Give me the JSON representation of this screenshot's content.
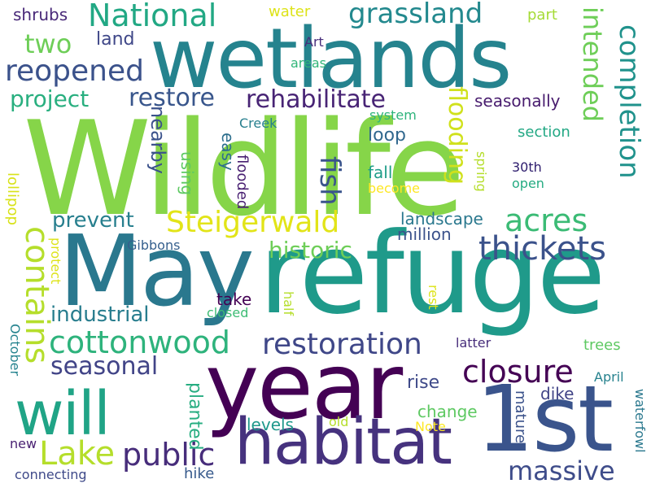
{
  "word_cloud": {
    "words": [
      {
        "text": "Wildlife",
        "color": "#86d549"
      },
      {
        "text": "refuge",
        "color": "#1f9a8a"
      },
      {
        "text": "wetlands",
        "color": "#25838e"
      },
      {
        "text": "May",
        "color": "#2a788e"
      },
      {
        "text": "year",
        "color": "#440154"
      },
      {
        "text": "1st",
        "color": "#3a548c"
      },
      {
        "text": "habitat",
        "color": "#46327e"
      },
      {
        "text": "will",
        "color": "#20a486"
      },
      {
        "text": "National",
        "color": "#22a884"
      },
      {
        "text": "grassland",
        "color": "#23898e"
      },
      {
        "text": "two",
        "color": "#6ece58"
      },
      {
        "text": "land",
        "color": "#3f4788"
      },
      {
        "text": "reopened",
        "color": "#3b528b"
      },
      {
        "text": "project",
        "color": "#29af7f"
      },
      {
        "text": "restore",
        "color": "#39568c"
      },
      {
        "text": "rehabilitate",
        "color": "#482475"
      },
      {
        "text": "seasonally",
        "color": "#481c6e"
      },
      {
        "text": "intended",
        "color": "#6ece58"
      },
      {
        "text": "completion",
        "color": "#20928c"
      },
      {
        "text": "Steigerwald",
        "color": "#e2e418"
      },
      {
        "text": "acres",
        "color": "#3bbb75"
      },
      {
        "text": "contains",
        "color": "#b5de2b"
      },
      {
        "text": "fish",
        "color": "#3a548c"
      },
      {
        "text": "flooding",
        "color": "#d0e11c"
      },
      {
        "text": "thickets",
        "color": "#3b528b"
      },
      {
        "text": "historic",
        "color": "#6ece58"
      },
      {
        "text": "prevent",
        "color": "#277f8e"
      },
      {
        "text": "cottonwood",
        "color": "#2eb37c"
      },
      {
        "text": "restoration",
        "color": "#3f4788"
      },
      {
        "text": "closure",
        "color": "#440154"
      },
      {
        "text": "seasonal",
        "color": "#414487"
      },
      {
        "text": "industrial",
        "color": "#287d8e"
      },
      {
        "text": "Lake",
        "color": "#b5de2b"
      },
      {
        "text": "public",
        "color": "#472d7b"
      },
      {
        "text": "massive",
        "color": "#3e4c8a"
      },
      {
        "text": "shrubs",
        "color": "#482878"
      },
      {
        "text": "water",
        "color": "#dde318"
      },
      {
        "text": "part",
        "color": "#a5db36"
      },
      {
        "text": "Art",
        "color": "#472d7b"
      },
      {
        "text": "areas",
        "color": "#32b67a"
      },
      {
        "text": "Creek",
        "color": "#277f8e"
      },
      {
        "text": "system",
        "color": "#2fb47c"
      },
      {
        "text": "loop",
        "color": "#31688e"
      },
      {
        "text": "section",
        "color": "#22a884"
      },
      {
        "text": "fall",
        "color": "#1f9e89"
      },
      {
        "text": "become",
        "color": "#fde725"
      },
      {
        "text": "30th",
        "color": "#2d1c6d"
      },
      {
        "text": "open",
        "color": "#25ab82"
      },
      {
        "text": "spring",
        "color": "#b5de2b"
      },
      {
        "text": "landscape",
        "color": "#2a788e"
      },
      {
        "text": "million",
        "color": "#3b528b"
      },
      {
        "text": "easy",
        "color": "#2e6f8e"
      },
      {
        "text": "using",
        "color": "#5ec962"
      },
      {
        "text": "flooded",
        "color": "#481f71"
      },
      {
        "text": "nearby",
        "color": "#3b528b"
      },
      {
        "text": "lollipop",
        "color": "#d8e219"
      },
      {
        "text": "protect",
        "color": "#dde318"
      },
      {
        "text": "Gibbons",
        "color": "#355f8d"
      },
      {
        "text": "take",
        "color": "#440154"
      },
      {
        "text": "closed",
        "color": "#3dbc74"
      },
      {
        "text": "half",
        "color": "#b5de2b"
      },
      {
        "text": "rest",
        "color": "#dde318"
      },
      {
        "text": "October",
        "color": "#25838e"
      },
      {
        "text": "latter",
        "color": "#472d7b"
      },
      {
        "text": "trees",
        "color": "#5ec962"
      },
      {
        "text": "April",
        "color": "#26828e"
      },
      {
        "text": "rise",
        "color": "#3e4989"
      },
      {
        "text": "dike",
        "color": "#414487"
      },
      {
        "text": "mature",
        "color": "#3b528b"
      },
      {
        "text": "change",
        "color": "#5ec962"
      },
      {
        "text": "levels",
        "color": "#1f988b"
      },
      {
        "text": "old",
        "color": "#b5de2b"
      },
      {
        "text": "Note",
        "color": "#fde725"
      },
      {
        "text": "planted",
        "color": "#27ad81"
      },
      {
        "text": "waterfowl",
        "color": "#2a788e"
      },
      {
        "text": "new",
        "color": "#481f71"
      },
      {
        "text": "connecting",
        "color": "#3e4989"
      },
      {
        "text": "hike",
        "color": "#375a8c"
      }
    ]
  }
}
